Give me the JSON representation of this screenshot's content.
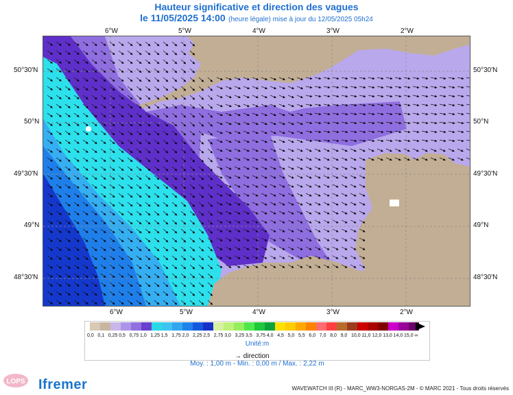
{
  "title": {
    "line1": "Hauteur significative et direction des vagues",
    "date": "le 11/05/2025 14:00",
    "update": "(heure légale) mise à jour du 12/05/2025 05h24"
  },
  "axes": {
    "lon_labels": [
      "6°W",
      "5°W",
      "4°W",
      "3°W",
      "2°W"
    ],
    "lat_labels": [
      "50°30'N",
      "50°N",
      "49°30'N",
      "49°N",
      "48°30'N"
    ]
  },
  "legend": {
    "colors": [
      "#d8c8b4",
      "#c9b6a0",
      "#c8b7e9",
      "#ad94eb",
      "#9070e0",
      "#6b3fd0",
      "#2ad8e6",
      "#3ec4f0",
      "#33a6f0",
      "#1f82ea",
      "#1459dd",
      "#1530c8",
      "#d8f0a2",
      "#bff07a",
      "#95ee5c",
      "#4ee84e",
      "#1ec83a",
      "#0ea23a",
      "#ffe000",
      "#ffcc00",
      "#ffa800",
      "#ff8200",
      "#ff6b70",
      "#ff4040",
      "#b86c2a",
      "#9c3b1e",
      "#cc0000",
      "#aa0000",
      "#800000",
      "#cc00cc",
      "#990099",
      "#6a006a"
    ],
    "labels": [
      "0,0",
      "0,1",
      "0,25",
      "0,5",
      "0,75",
      "1,0",
      "1,25",
      "1,5",
      "1,75",
      "2,0",
      "2,25",
      "2,5",
      "2,75",
      "3,0",
      "3,25",
      "3,5",
      "3,75",
      "4,0",
      "4,5",
      "5,0",
      "5,5",
      "6,0",
      "7,0",
      "8,0",
      "9,0",
      "10,0",
      "11,0",
      "12,0",
      "13,0",
      "14,0",
      "15,0",
      "∞"
    ],
    "unit": "Unité:m",
    "direction_label": "direction",
    "stats": "Moy. : 1,00 m  -  Min. : 0,00 m / Max. : 2,22 m"
  },
  "footer": {
    "model": "WAVEWATCH III (R) - MARC_WW3-NORGAS-2M - © MARC 2021 - Tous droits réservés",
    "logo_left": "LOPS",
    "logo_right": "Ifremer"
  },
  "map": {
    "land_color": "#c2ae94",
    "color_light_purple": "#b9a8ec",
    "color_mid_purple": "#8f6ee0",
    "color_dark_purple": "#5f2fc9",
    "color_cyan": "#2ce0ec",
    "color_sky": "#35aef2",
    "color_blue": "#1f7fea",
    "color_dark_blue": "#1538cc"
  }
}
